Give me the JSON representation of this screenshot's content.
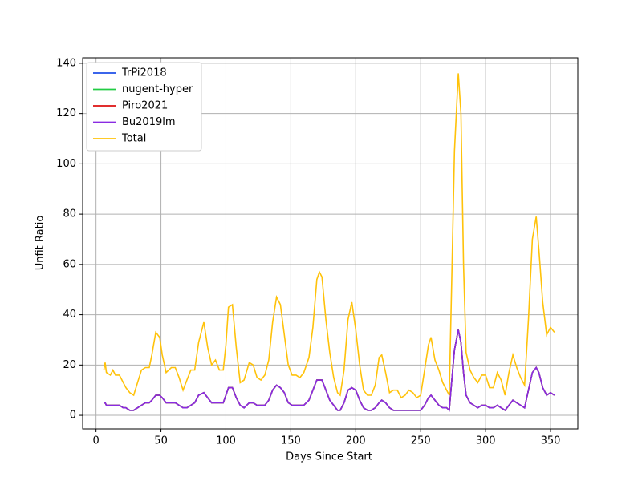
{
  "chart_data": {
    "type": "line",
    "xlabel": "Days Since Start",
    "ylabel": "Unfit Ratio",
    "x": [
      6,
      7,
      8,
      11,
      13,
      15,
      18,
      21,
      23,
      26,
      29,
      32,
      35,
      38,
      41,
      43,
      46,
      49,
      51,
      54,
      58,
      61,
      64,
      67,
      70,
      73,
      76,
      79,
      83,
      86,
      89,
      92,
      95,
      98,
      100,
      102,
      105,
      108,
      111,
      114,
      118,
      121,
      124,
      127,
      130,
      133,
      136,
      139,
      142,
      145,
      148,
      151,
      154,
      157,
      160,
      164,
      167,
      170,
      172,
      174,
      177,
      180,
      183,
      186,
      188,
      191,
      194,
      197,
      200,
      203,
      206,
      209,
      212,
      215,
      218,
      220,
      223,
      226,
      229,
      232,
      235,
      238,
      241,
      244,
      247,
      250,
      253,
      256,
      258,
      261,
      264,
      267,
      270,
      272,
      274,
      276,
      279,
      281,
      283,
      285,
      288,
      291,
      294,
      297,
      300,
      303,
      306,
      309,
      312,
      315,
      318,
      321,
      324,
      327,
      330,
      333,
      336,
      339,
      341,
      344,
      347,
      350,
      353
    ],
    "series": [
      {
        "name": "TrPi2018",
        "color": "#1f4fe8",
        "values": [
          5,
          5,
          4,
          4,
          4,
          4,
          4,
          3,
          3,
          2,
          2,
          3,
          4,
          5,
          5,
          6,
          8,
          8,
          7,
          5,
          5,
          5,
          4,
          3,
          3,
          4,
          5,
          8,
          9,
          7,
          5,
          5,
          5,
          5,
          8,
          11,
          11,
          7,
          4,
          3,
          5,
          5,
          4,
          4,
          4,
          6,
          10,
          12,
          11,
          9,
          5,
          4,
          4,
          4,
          4,
          6,
          10,
          14,
          14,
          14,
          10,
          6,
          4,
          2,
          2,
          5,
          10,
          11,
          10,
          6,
          3,
          2,
          2,
          3,
          5,
          6,
          5,
          3,
          2,
          2,
          2,
          2,
          2,
          2,
          2,
          2,
          4,
          7,
          8,
          6,
          4,
          3,
          3,
          2,
          14,
          26,
          34,
          29,
          17,
          8,
          5,
          4,
          3,
          4,
          4,
          3,
          3,
          4,
          3,
          2,
          4,
          6,
          5,
          4,
          3,
          10,
          17,
          19,
          17,
          11,
          8,
          9,
          8
        ]
      },
      {
        "name": "nugent-hyper",
        "color": "#22cc44",
        "values": [
          5,
          5,
          4,
          4,
          4,
          4,
          4,
          3,
          3,
          2,
          2,
          3,
          4,
          5,
          5,
          6,
          8,
          8,
          7,
          5,
          5,
          5,
          4,
          3,
          3,
          4,
          5,
          8,
          9,
          7,
          5,
          5,
          5,
          5,
          8,
          11,
          11,
          7,
          4,
          3,
          5,
          5,
          4,
          4,
          4,
          6,
          10,
          12,
          11,
          9,
          5,
          4,
          4,
          4,
          4,
          6,
          10,
          14,
          14,
          14,
          10,
          6,
          4,
          2,
          2,
          5,
          10,
          11,
          10,
          6,
          3,
          2,
          2,
          3,
          5,
          6,
          5,
          3,
          2,
          2,
          2,
          2,
          2,
          2,
          2,
          2,
          4,
          7,
          8,
          6,
          4,
          3,
          3,
          2,
          14,
          26,
          34,
          29,
          17,
          8,
          5,
          4,
          3,
          4,
          4,
          3,
          3,
          4,
          3,
          2,
          4,
          6,
          5,
          4,
          3,
          10,
          17,
          19,
          17,
          11,
          8,
          9,
          8
        ]
      },
      {
        "name": "Piro2021",
        "color": "#dd1111",
        "values": [
          5,
          5,
          4,
          4,
          4,
          4,
          4,
          3,
          3,
          2,
          2,
          3,
          4,
          5,
          5,
          6,
          8,
          8,
          7,
          5,
          5,
          5,
          4,
          3,
          3,
          4,
          5,
          8,
          9,
          7,
          5,
          5,
          5,
          5,
          8,
          11,
          11,
          7,
          4,
          3,
          5,
          5,
          4,
          4,
          4,
          6,
          10,
          12,
          11,
          9,
          5,
          4,
          4,
          4,
          4,
          6,
          10,
          14,
          14,
          14,
          10,
          6,
          4,
          2,
          2,
          5,
          10,
          11,
          10,
          6,
          3,
          2,
          2,
          3,
          5,
          6,
          5,
          3,
          2,
          2,
          2,
          2,
          2,
          2,
          2,
          2,
          4,
          7,
          8,
          6,
          4,
          3,
          3,
          2,
          14,
          26,
          34,
          29,
          17,
          8,
          5,
          4,
          3,
          4,
          4,
          3,
          3,
          4,
          3,
          2,
          4,
          6,
          5,
          4,
          3,
          10,
          17,
          19,
          17,
          11,
          8,
          9,
          8
        ]
      },
      {
        "name": "Bu2019lm",
        "color": "#8a2be2",
        "values": [
          5,
          5,
          4,
          4,
          4,
          4,
          4,
          3,
          3,
          2,
          2,
          3,
          4,
          5,
          5,
          6,
          8,
          8,
          7,
          5,
          5,
          5,
          4,
          3,
          3,
          4,
          5,
          8,
          9,
          7,
          5,
          5,
          5,
          5,
          8,
          11,
          11,
          7,
          4,
          3,
          5,
          5,
          4,
          4,
          4,
          6,
          10,
          12,
          11,
          9,
          5,
          4,
          4,
          4,
          4,
          6,
          10,
          14,
          14,
          14,
          10,
          6,
          4,
          2,
          2,
          5,
          10,
          11,
          10,
          6,
          3,
          2,
          2,
          3,
          5,
          6,
          5,
          3,
          2,
          2,
          2,
          2,
          2,
          2,
          2,
          2,
          4,
          7,
          8,
          6,
          4,
          3,
          3,
          2,
          14,
          26,
          34,
          29,
          17,
          8,
          5,
          4,
          3,
          4,
          4,
          3,
          3,
          4,
          3,
          2,
          4,
          6,
          5,
          4,
          3,
          10,
          17,
          19,
          17,
          11,
          8,
          9,
          8
        ]
      },
      {
        "name": "Total",
        "color": "#ffc20a",
        "values": [
          18,
          21,
          17,
          16,
          18,
          16,
          16,
          13,
          11,
          9,
          8,
          13,
          18,
          19,
          19,
          24,
          33,
          31,
          24,
          17,
          19,
          19,
          15,
          10,
          14,
          18,
          18,
          29,
          37,
          27,
          20,
          22,
          18,
          18,
          28,
          43,
          44,
          27,
          13,
          14,
          21,
          20,
          15,
          14,
          16,
          22,
          37,
          47,
          44,
          32,
          20,
          16,
          16,
          15,
          17,
          23,
          35,
          54,
          57,
          55,
          38,
          25,
          15,
          9,
          8,
          18,
          38,
          45,
          34,
          20,
          10,
          8,
          8,
          12,
          23,
          24,
          17,
          9,
          10,
          10,
          7,
          8,
          10,
          9,
          7,
          8,
          18,
          28,
          31,
          22,
          18,
          13,
          10,
          8,
          55,
          105,
          136,
          120,
          60,
          25,
          18,
          15,
          13,
          16,
          16,
          11,
          11,
          17,
          14,
          8,
          17,
          24,
          19,
          15,
          12,
          38,
          70,
          79,
          66,
          45,
          32,
          35,
          33
        ]
      }
    ],
    "xlim": [
      -10.3,
      371
    ],
    "ylim": [
      -5.4,
      142.2
    ],
    "xticks": [
      0,
      50,
      100,
      150,
      200,
      250,
      300,
      350
    ],
    "yticks": [
      0,
      20,
      40,
      60,
      80,
      100,
      120,
      140
    ],
    "grid": true,
    "legend": "upper left"
  }
}
